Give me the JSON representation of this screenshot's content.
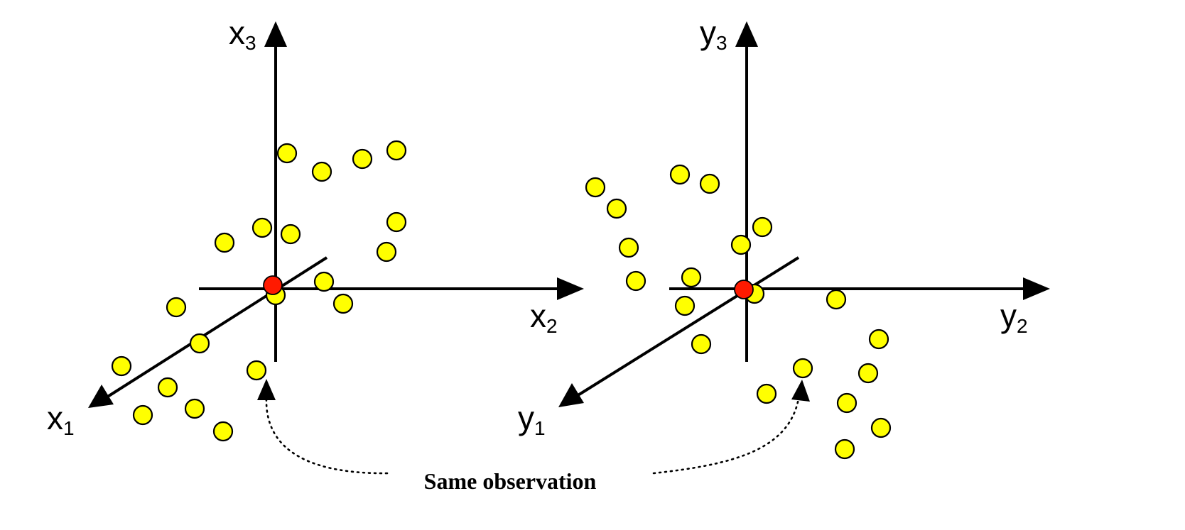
{
  "left_panel": {
    "axes": {
      "x1": {
        "base": "x",
        "sub": "1"
      },
      "x2": {
        "base": "x",
        "sub": "2"
      },
      "x3": {
        "base": "x",
        "sub": "3"
      }
    },
    "point_color": "#ffff00",
    "highlight_color": "#ff1a00"
  },
  "right_panel": {
    "axes": {
      "y1": {
        "base": "y",
        "sub": "1"
      },
      "y2": {
        "base": "y",
        "sub": "2"
      },
      "y3": {
        "base": "y",
        "sub": "3"
      }
    },
    "point_color": "#ffff00",
    "highlight_color": "#ff1a00"
  },
  "caption": "Same observation"
}
